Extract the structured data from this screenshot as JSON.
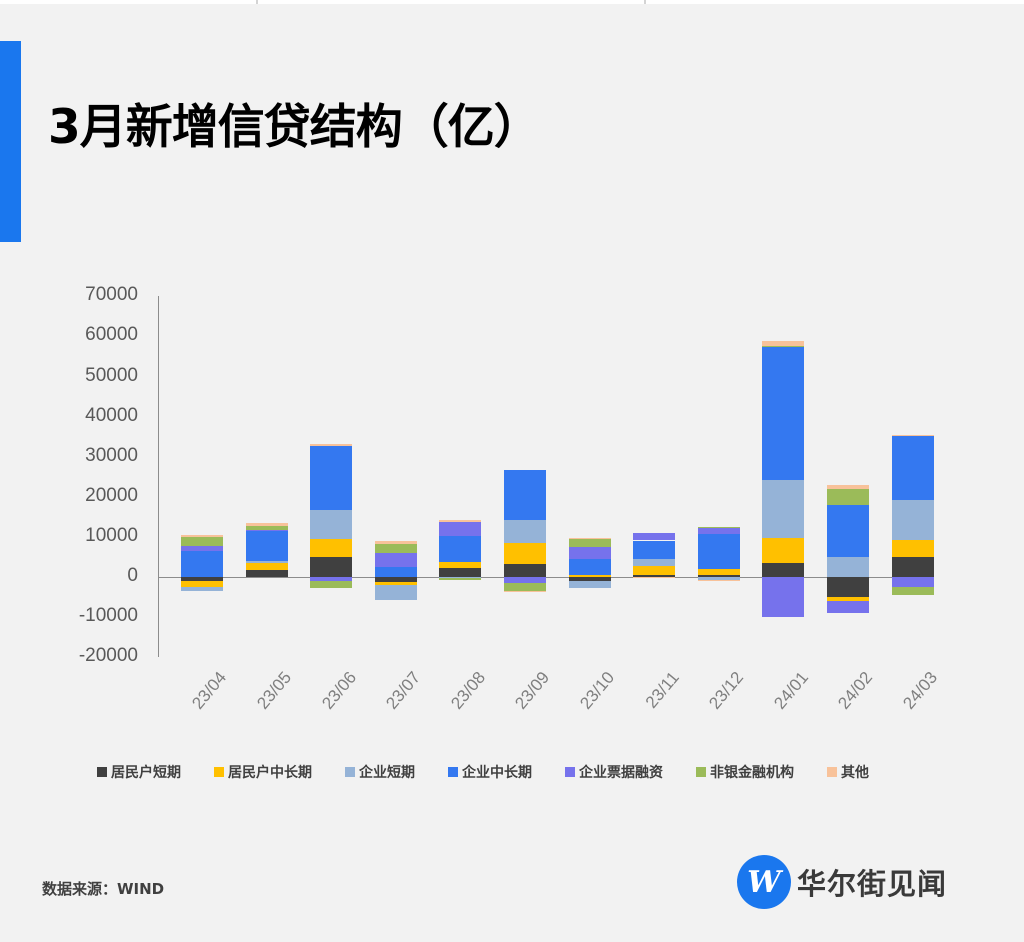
{
  "header": {
    "title": "3月新增信贷结构（亿）",
    "accent_color": "#1a77ee"
  },
  "chart_data": {
    "type": "bar",
    "stacked": true,
    "title": "3月新增信贷结构（亿）",
    "xlabel": "",
    "ylabel": "",
    "ylim": [
      -20000,
      70000
    ],
    "yticks": [
      70000,
      60000,
      50000,
      40000,
      30000,
      20000,
      10000,
      0,
      -10000,
      -20000
    ],
    "grid": false,
    "legend_position": "bottom",
    "categories": [
      "23/04",
      "23/05",
      "23/06",
      "23/07",
      "23/08",
      "23/09",
      "23/10",
      "23/11",
      "23/12",
      "24/01",
      "24/02",
      "24/03"
    ],
    "series": [
      {
        "name": "居民户短期",
        "color": "#404040",
        "values": [
          -1100,
          1700,
          4900,
          -1300,
          2300,
          3300,
          -1100,
          600,
          600,
          3400,
          -5000,
          5000
        ]
      },
      {
        "name": "居民户中长期",
        "color": "#ffc000",
        "values": [
          -1500,
          1700,
          4600,
          -800,
          1400,
          5200,
          600,
          2200,
          1500,
          6300,
          -1000,
          4300
        ]
      },
      {
        "name": "企业短期",
        "color": "#95b3d7",
        "values": [
          -1000,
          600,
          7200,
          -3700,
          -300,
          5700,
          -1700,
          1700,
          -700,
          14500,
          5100,
          9800
        ]
      },
      {
        "name": "企业中长期",
        "color": "#3478f0",
        "values": [
          6500,
          7700,
          15900,
          2600,
          6600,
          12400,
          3800,
          4600,
          8700,
          33100,
          12800,
          16000
        ]
      },
      {
        "name": "企业票据融资",
        "color": "#7672ec",
        "values": [
          1200,
          100,
          -900,
          3500,
          3300,
          -1600,
          3100,
          1800,
          1400,
          -9900,
          -2900,
          -2500
        ]
      },
      {
        "name": "非银金融机构",
        "color": "#9bbb59",
        "values": [
          2200,
          800,
          -1900,
          2200,
          -500,
          -1800,
          2200,
          0,
          300,
          300,
          4100,
          -1900
        ]
      },
      {
        "name": "其他",
        "color": "#f8c29a",
        "values": [
          600,
          800,
          500,
          700,
          700,
          -200,
          100,
          -300,
          -200,
          1200,
          1000,
          200
        ]
      }
    ]
  },
  "footer": {
    "source_label": "数据来源：WIND",
    "logo_glyph": "W",
    "logo_text": "华尔街见闻"
  }
}
